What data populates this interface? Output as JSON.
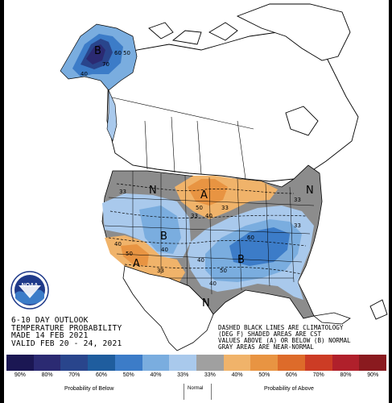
{
  "title": {
    "line1": "6-10 DAY OUTLOOK",
    "line2": "TEMPERATURE PROBABILITY",
    "line3": "MADE  14 FEB 2021",
    "line4": "VALID  FEB 20 - 24, 2021"
  },
  "note": {
    "line1": "DASHED BLACK LINES ARE CLIMATOLOGY",
    "line2": "(DEG F) SHADED AREAS ARE CST",
    "line3": "VALUES ABOVE (A) OR BELOW (B) NORMAL",
    "line4": "GRAY AREAS ARE NEAR-NORMAL"
  },
  "logo_text": "NOAA",
  "legend": {
    "labels": [
      "90%",
      "80%",
      "70%",
      "60%",
      "50%",
      "40%",
      "33%",
      "33%",
      "40%",
      "50%",
      "60%",
      "70%",
      "80%",
      "90%"
    ],
    "colors": [
      "#1b1753",
      "#2b2a72",
      "#29458c",
      "#1f5d9e",
      "#3c7cc8",
      "#7aaddf",
      "#a9c9ec",
      "#a0a0a0",
      "#f0b36a",
      "#e89442",
      "#dd6b2a",
      "#cc3c25",
      "#b0202b",
      "#8a1a1f"
    ],
    "below_label": "Probability of Below",
    "normal_label": "Normal",
    "above_label": "Probability of Above"
  },
  "map": {
    "region_labels": {
      "alaska_b": "B",
      "alaska_40": "40",
      "alaska_50": "50",
      "alaska_70": "70",
      "alaska_60": "60",
      "north_n": "N",
      "north_a": "A",
      "north_a_50": "50",
      "north_a_40": "40",
      "north_33_left": "33",
      "north_33_right": "33",
      "central_b": "B",
      "central_40": "40",
      "central_33": "33",
      "sw_a": "A",
      "sw_40": "40",
      "sw_50": "50",
      "sw_33": "33",
      "east_b": "B",
      "east_40": "40",
      "east_50": "50",
      "east_60": "60",
      "east_33": "33",
      "east_40b": "40",
      "south_n": "N",
      "ne_n": "N",
      "ne_33": "33"
    }
  },
  "colors": {
    "below_light": "#a9c9ec",
    "below_mid": "#7aaddf",
    "below_dark": "#3c7cc8",
    "below_deep": "#1f5d9e",
    "below_navy": "#2b2a72",
    "near_normal": "#8c8c8c",
    "above_light": "#f0b36a",
    "above_mid": "#e89442",
    "above_dark": "#dd6b2a"
  }
}
